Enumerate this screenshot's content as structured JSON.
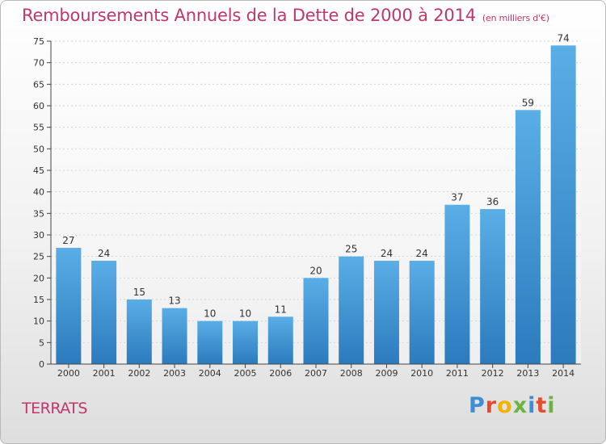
{
  "header": {
    "title": "Remboursements Annuels de la Dette de 2000 à 2014",
    "subtitle": "(en milliers d'€)"
  },
  "footer": {
    "commune": "TERRATS",
    "logo_text": "Proxiti",
    "logo_colors": [
      "#3a8fd6",
      "#e84a2e",
      "#f2b300",
      "#6cb33f",
      "#3a8fd6",
      "#e84a2e",
      "#6cb33f"
    ]
  },
  "colors": {
    "title": "#c0366e",
    "bar_top": "#5aaee6",
    "bar_bottom": "#2b7bbd",
    "axis": "#444444",
    "grid": "#d3d3d3"
  },
  "chart_data": {
    "type": "bar",
    "title": "Remboursements Annuels de la Dette de 2000 à 2014",
    "subtitle": "(en milliers d'€)",
    "categories": [
      "2000",
      "2001",
      "2002",
      "2003",
      "2004",
      "2005",
      "2006",
      "2007",
      "2008",
      "2009",
      "2010",
      "2011",
      "2012",
      "2013",
      "2014"
    ],
    "values": [
      27,
      24,
      15,
      13,
      10,
      10,
      11,
      20,
      25,
      24,
      24,
      37,
      36,
      59,
      74
    ],
    "ylim": [
      0,
      75
    ],
    "yticks": [
      0,
      5,
      10,
      15,
      20,
      25,
      30,
      35,
      40,
      45,
      50,
      55,
      60,
      65,
      70,
      75
    ],
    "grid": true,
    "data_labels": true
  }
}
